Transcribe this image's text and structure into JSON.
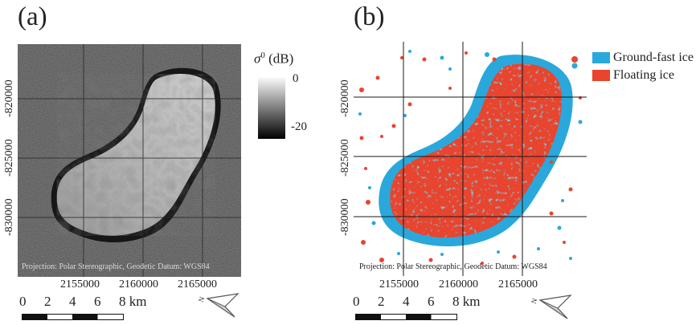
{
  "panels": [
    {
      "label": "(a)",
      "y_ticks": [
        "-820000",
        "-825000",
        "-830000"
      ],
      "x_ticks": [
        "2155000",
        "2160000",
        "2165000"
      ],
      "projection_text": "Projection: Polar Stereographic, Geodetic Datum: WGS84",
      "colorbar": {
        "symbol": "σ",
        "superscript": "0",
        "unit": "(dB)",
        "max_label": "0",
        "min_label": "-20"
      }
    },
    {
      "label": "(b)",
      "y_ticks": [
        "-820000",
        "-825000",
        "-830000"
      ],
      "x_ticks": [
        "2155000",
        "2160000",
        "2165000"
      ],
      "projection_text": "Projection: Polar Stereographic, Geodetic Datum: WGS84",
      "legend": [
        {
          "label": "Ground-fast ice",
          "color": "#2aa8dc"
        },
        {
          "label": "Floating ice",
          "color": "#e8442e"
        }
      ]
    }
  ],
  "scale_bar": {
    "labels": [
      "0",
      "2",
      "4",
      "6",
      "8 km"
    ]
  },
  "colors": {
    "ground_fast": "#2aa8dc",
    "floating": "#e8442e",
    "sar_background": "#4a4a4a"
  },
  "icons": {
    "north_arrow": "north-arrow-icon"
  }
}
